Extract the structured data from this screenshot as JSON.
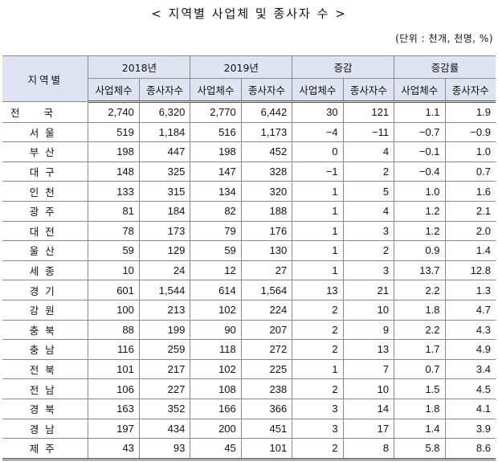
{
  "title": "< 지역별 사업체 및 종사자 수 >",
  "unit": "(단위 : 천개, 천명, %)",
  "headers": {
    "region": "지역별",
    "groups": [
      "2018년",
      "2019년",
      "증감",
      "증감률"
    ],
    "sub": [
      "사업체수",
      "종사자수",
      "사업체수",
      "종사자수",
      "사업체수",
      "종사자수",
      "사업체수",
      "종사자수"
    ]
  },
  "rows": [
    {
      "region": "전국",
      "values": [
        "2,740",
        "6,320",
        "2,770",
        "6,442",
        "30",
        "121",
        "1.1",
        "1.9"
      ]
    },
    {
      "region": "서울",
      "values": [
        "519",
        "1,184",
        "516",
        "1,173",
        "−4",
        "−11",
        "−0.7",
        "−0.9"
      ]
    },
    {
      "region": "부산",
      "values": [
        "198",
        "447",
        "198",
        "452",
        "0",
        "4",
        "−0.1",
        "1.0"
      ]
    },
    {
      "region": "대구",
      "values": [
        "148",
        "325",
        "147",
        "328",
        "−1",
        "2",
        "−0.4",
        "0.7"
      ]
    },
    {
      "region": "인천",
      "values": [
        "133",
        "315",
        "134",
        "320",
        "1",
        "5",
        "1.0",
        "1.6"
      ]
    },
    {
      "region": "광주",
      "values": [
        "81",
        "184",
        "82",
        "188",
        "1",
        "4",
        "1.2",
        "2.1"
      ]
    },
    {
      "region": "대전",
      "values": [
        "78",
        "173",
        "79",
        "176",
        "1",
        "3",
        "1.2",
        "2.0"
      ]
    },
    {
      "region": "울산",
      "values": [
        "59",
        "129",
        "59",
        "130",
        "1",
        "2",
        "0.9",
        "1.4"
      ]
    },
    {
      "region": "세종",
      "values": [
        "10",
        "24",
        "12",
        "27",
        "1",
        "3",
        "13.7",
        "12.8"
      ]
    },
    {
      "region": "경기",
      "values": [
        "601",
        "1,544",
        "614",
        "1,564",
        "13",
        "21",
        "2.2",
        "1.3"
      ]
    },
    {
      "region": "강원",
      "values": [
        "100",
        "213",
        "102",
        "224",
        "2",
        "10",
        "1.8",
        "4.7"
      ]
    },
    {
      "region": "충북",
      "values": [
        "88",
        "199",
        "90",
        "207",
        "2",
        "9",
        "2.2",
        "4.3"
      ]
    },
    {
      "region": "충남",
      "values": [
        "116",
        "259",
        "118",
        "272",
        "2",
        "13",
        "1.7",
        "4.9"
      ]
    },
    {
      "region": "전북",
      "values": [
        "101",
        "217",
        "102",
        "225",
        "1",
        "7",
        "0.7",
        "3.4"
      ]
    },
    {
      "region": "전남",
      "values": [
        "106",
        "227",
        "108",
        "238",
        "2",
        "10",
        "1.5",
        "4.5"
      ]
    },
    {
      "region": "경북",
      "values": [
        "163",
        "352",
        "166",
        "366",
        "3",
        "14",
        "1.8",
        "4.1"
      ]
    },
    {
      "region": "경남",
      "values": [
        "197",
        "434",
        "200",
        "451",
        "3",
        "17",
        "1.4",
        "3.9"
      ]
    },
    {
      "region": "제주",
      "values": [
        "43",
        "93",
        "45",
        "101",
        "2",
        "8",
        "5.8",
        "8.6"
      ]
    }
  ]
}
